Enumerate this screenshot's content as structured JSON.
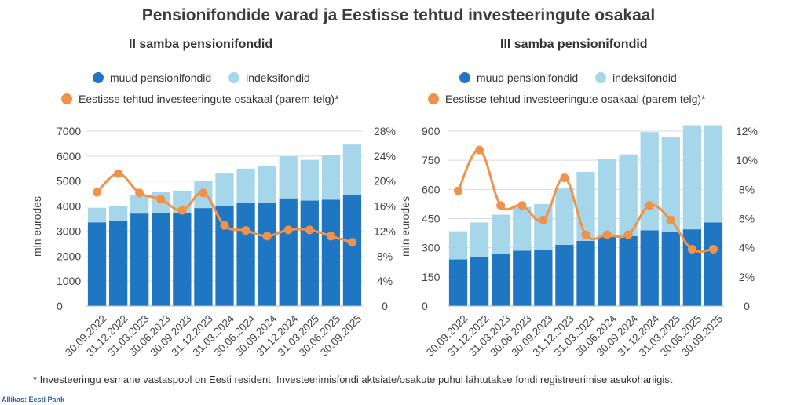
{
  "title": "Pensionifondide varad ja Eestisse tehtud investeeringute osakaal",
  "footnote": "* Investeeringu esmane vastaspool on Eesti resident. Investeerimisfondi aktsiate/osakute puhul lähtutakse fondi registreerimise asukohariigist",
  "source": "Allikas: Eesti Pank",
  "colors": {
    "muud": "#1f76c2",
    "indeks": "#a6d6e9",
    "osakaal": "#f0924a"
  },
  "legend": {
    "muud": "muud pensionifondid",
    "indeks": "indeksifondid",
    "osakaal": "Eestisse tehtud investeeringute osakaal (parem telg)*"
  },
  "chart_data": [
    {
      "type": "bar",
      "title": "II samba pensionifondid",
      "ylabel": "mln eurodes",
      "stacked": true,
      "categories": [
        "30.09.2022",
        "31.12.2022",
        "31.03.2023",
        "30.06.2023",
        "30.09.2023",
        "31.12.2023",
        "31.03.2024",
        "30.06.2024",
        "30.09.2024",
        "31.12.2024",
        "31.03.2025",
        "30.06.2025",
        "30.09.2025"
      ],
      "yticks": [
        "0",
        "1000",
        "2000",
        "3000",
        "4000",
        "5000",
        "6000",
        "7000"
      ],
      "y2ticks": [
        "0",
        "4%",
        "8%",
        "12%",
        "16%",
        "20%",
        "24%",
        "28%"
      ],
      "ylim": [
        0,
        7000
      ],
      "y2lim": [
        0,
        28
      ],
      "series": [
        {
          "name": "muud pensionifondid",
          "values": [
            3350,
            3400,
            3700,
            3720,
            3720,
            3920,
            4020,
            4120,
            4150,
            4310,
            4220,
            4260,
            4430
          ]
        },
        {
          "name": "indeksifondid",
          "values": [
            580,
            600,
            750,
            850,
            900,
            1070,
            1280,
            1380,
            1470,
            1680,
            1630,
            1780,
            2030
          ]
        },
        {
          "name": "Eestisse tehtud investeeringute osakaal (parem telg)*",
          "axis": "right",
          "values": [
            18.2,
            21.2,
            18.1,
            17.1,
            15.3,
            18.1,
            12.9,
            12.1,
            11.2,
            12.2,
            12.2,
            11.2,
            10.2
          ]
        }
      ]
    },
    {
      "type": "bar",
      "title": "III samba pensionifondid",
      "ylabel": "mln eurodes",
      "stacked": true,
      "categories": [
        "30.09.2022",
        "31.12.2022",
        "31.03.2023",
        "30.06.2023",
        "30.09.2023",
        "31.12.2023",
        "31.03.2024",
        "30.06.2024",
        "30.09.2024",
        "31.12.2024",
        "31.03.2025",
        "30.06.2025",
        "30.09.2025"
      ],
      "yticks": [
        "0",
        "150",
        "300",
        "450",
        "600",
        "750",
        "900"
      ],
      "y2ticks": [
        "0",
        "2%",
        "4%",
        "6%",
        "8%",
        "10%",
        "12%"
      ],
      "ylim": [
        0,
        900
      ],
      "y2lim": [
        0,
        12
      ],
      "series": [
        {
          "name": "muud pensionifondid",
          "values": [
            240,
            255,
            270,
            285,
            290,
            315,
            335,
            355,
            360,
            390,
            380,
            395,
            430
          ]
        },
        {
          "name": "indeksifondid",
          "values": [
            145,
            175,
            200,
            225,
            235,
            290,
            355,
            400,
            420,
            505,
            490,
            535,
            500
          ]
        },
        {
          "name": "Eestisse tehtud investeeringute osakaal (parem telg)*",
          "axis": "right",
          "values": [
            7.9,
            10.7,
            6.9,
            6.9,
            5.9,
            8.8,
            4.9,
            4.9,
            4.9,
            6.9,
            5.9,
            3.9,
            3.9
          ]
        }
      ]
    }
  ]
}
